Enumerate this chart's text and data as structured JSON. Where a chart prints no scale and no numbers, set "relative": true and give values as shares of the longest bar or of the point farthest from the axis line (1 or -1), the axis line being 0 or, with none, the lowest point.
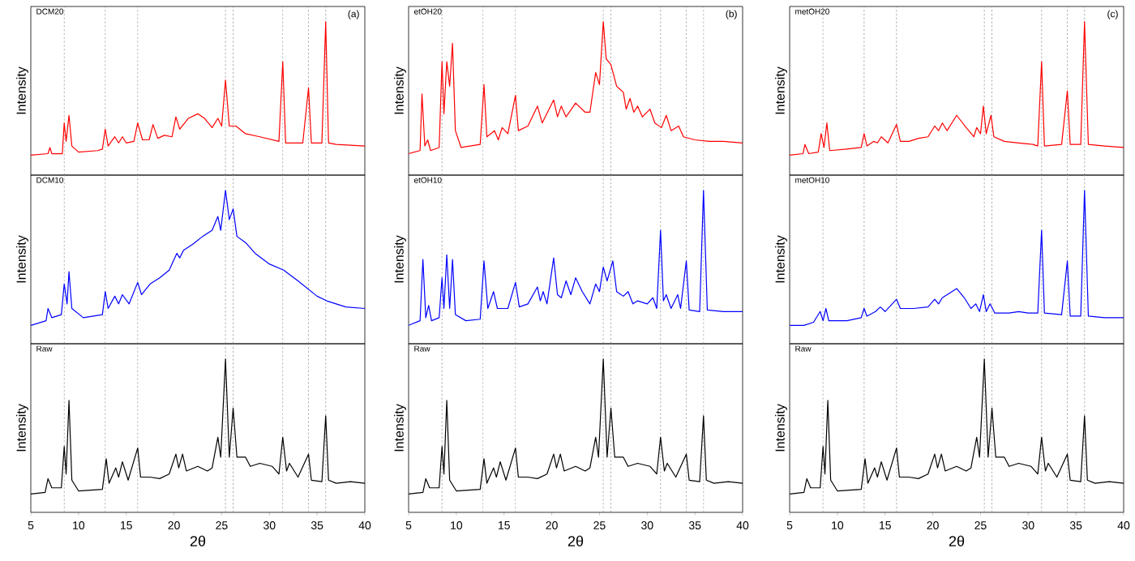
{
  "chart_data": [
    {
      "type": "line",
      "title": "DCM20",
      "ylabel": "Intensity",
      "annotations": [
        "(a)"
      ],
      "relative": true,
      "xlim": [
        5,
        40
      ],
      "tick_labels": false,
      "ref_lines": [
        {
          "axis": "x",
          "value": 8.5,
          "line_style": "dashed",
          "color": "#999999"
        },
        {
          "axis": "x",
          "value": 12.8,
          "line_style": "dashed",
          "color": "#999999"
        },
        {
          "axis": "x",
          "value": 16.2,
          "line_style": "dashed",
          "color": "#999999"
        },
        {
          "axis": "x",
          "value": 25.4,
          "line_style": "dashed",
          "color": "#999999"
        },
        {
          "axis": "x",
          "value": 26.2,
          "line_style": "dashed",
          "color": "#999999"
        },
        {
          "axis": "x",
          "value": 31.4,
          "line_style": "dashed",
          "color": "#999999"
        },
        {
          "axis": "x",
          "value": 34.1,
          "line_style": "dashed",
          "color": "#999999"
        },
        {
          "axis": "x",
          "value": 35.9,
          "line_style": "dashed",
          "color": "#999999"
        }
      ],
      "series": [
        {
          "color": "#ff0000",
          "x": [
            5,
            6.8,
            7,
            7.2,
            8.3,
            8.5,
            8.7,
            9.0,
            9.3,
            10,
            12,
            12.5,
            12.8,
            13.1,
            13.8,
            14.2,
            14.6,
            15,
            15.8,
            16.2,
            16.7,
            17.4,
            17.8,
            18.3,
            19,
            19.8,
            20.2,
            20.6,
            21.5,
            22.5,
            23.2,
            24,
            24.6,
            25,
            25.4,
            25.8,
            26.5,
            27.5,
            29,
            31,
            31.4,
            31.7,
            33.5,
            34.1,
            34.4,
            35.5,
            35.9,
            36.2,
            37,
            40
          ],
          "values": [
            0.13,
            0.14,
            0.18,
            0.14,
            0.14,
            0.34,
            0.22,
            0.39,
            0.19,
            0.15,
            0.16,
            0.17,
            0.3,
            0.19,
            0.25,
            0.21,
            0.25,
            0.21,
            0.22,
            0.34,
            0.23,
            0.23,
            0.33,
            0.24,
            0.26,
            0.25,
            0.38,
            0.3,
            0.37,
            0.4,
            0.37,
            0.31,
            0.37,
            0.32,
            0.62,
            0.32,
            0.32,
            0.27,
            0.25,
            0.22,
            0.74,
            0.21,
            0.21,
            0.57,
            0.21,
            0.21,
            1,
            0.21,
            0.2,
            0.19
          ]
        }
      ]
    },
    {
      "type": "line",
      "title": "etOH20",
      "ylabel": "Intensity",
      "annotations": [
        "(b)"
      ],
      "relative": true,
      "xlim": [
        5,
        40
      ],
      "tick_labels": false,
      "ref_lines": [
        {
          "axis": "x",
          "value": 8.5,
          "line_style": "dashed",
          "color": "#999999"
        },
        {
          "axis": "x",
          "value": 12.8,
          "line_style": "dashed",
          "color": "#999999"
        },
        {
          "axis": "x",
          "value": 16.2,
          "line_style": "dashed",
          "color": "#999999"
        },
        {
          "axis": "x",
          "value": 25.4,
          "line_style": "dashed",
          "color": "#999999"
        },
        {
          "axis": "x",
          "value": 26.2,
          "line_style": "dashed",
          "color": "#999999"
        },
        {
          "axis": "x",
          "value": 31.4,
          "line_style": "dashed",
          "color": "#999999"
        },
        {
          "axis": "x",
          "value": 34.1,
          "line_style": "dashed",
          "color": "#999999"
        },
        {
          "axis": "x",
          "value": 35.9,
          "line_style": "dashed",
          "color": "#999999"
        }
      ],
      "series": [
        {
          "color": "#ff0000",
          "x": [
            5,
            6.2,
            6.4,
            6.7,
            7,
            7.3,
            8.2,
            8.5,
            8.7,
            9.0,
            9.3,
            9.6,
            9.9,
            10.5,
            12.5,
            12.9,
            13.2,
            14,
            14.4,
            14.8,
            15.4,
            16.2,
            16.5,
            17.5,
            18.5,
            19,
            20.2,
            20.6,
            21,
            21.5,
            22.5,
            23.5,
            24,
            24.6,
            25,
            25.4,
            25.7,
            26.2,
            26.8,
            27.5,
            27.8,
            28.2,
            28.6,
            29,
            29.5,
            30.3,
            30.8,
            31.5,
            32,
            32.5,
            33.3,
            33.8,
            35,
            36.5,
            38,
            40
          ],
          "values": [
            0.14,
            0.16,
            0.53,
            0.19,
            0.23,
            0.16,
            0.18,
            0.74,
            0.4,
            0.74,
            0.58,
            0.86,
            0.29,
            0.18,
            0.2,
            0.59,
            0.25,
            0.29,
            0.23,
            0.31,
            0.27,
            0.52,
            0.29,
            0.32,
            0.45,
            0.34,
            0.49,
            0.38,
            0.45,
            0.38,
            0.47,
            0.41,
            0.41,
            0.67,
            0.59,
            1,
            0.76,
            0.72,
            0.58,
            0.54,
            0.43,
            0.5,
            0.41,
            0.45,
            0.38,
            0.43,
            0.34,
            0.31,
            0.39,
            0.29,
            0.32,
            0.25,
            0.23,
            0.22,
            0.22,
            0.21
          ]
        }
      ]
    },
    {
      "type": "line",
      "title": "metOH20",
      "ylabel": "Intensity",
      "annotations": [
        "(c)"
      ],
      "relative": true,
      "xlim": [
        5,
        40
      ],
      "tick_labels": false,
      "ref_lines": [
        {
          "axis": "x",
          "value": 8.5,
          "line_style": "dashed",
          "color": "#999999"
        },
        {
          "axis": "x",
          "value": 12.8,
          "line_style": "dashed",
          "color": "#999999"
        },
        {
          "axis": "x",
          "value": 16.2,
          "line_style": "dashed",
          "color": "#999999"
        },
        {
          "axis": "x",
          "value": 25.4,
          "line_style": "dashed",
          "color": "#999999"
        },
        {
          "axis": "x",
          "value": 26.2,
          "line_style": "dashed",
          "color": "#999999"
        },
        {
          "axis": "x",
          "value": 31.4,
          "line_style": "dashed",
          "color": "#999999"
        },
        {
          "axis": "x",
          "value": 34.1,
          "line_style": "dashed",
          "color": "#999999"
        },
        {
          "axis": "x",
          "value": 35.9,
          "line_style": "dashed",
          "color": "#999999"
        }
      ],
      "series": [
        {
          "color": "#ff0000",
          "x": [
            5,
            6.4,
            6.6,
            7,
            8,
            8.3,
            8.6,
            8.9,
            9.2,
            11,
            12.5,
            12.8,
            13.1,
            13.8,
            14.2,
            14.6,
            15.3,
            16.2,
            16.6,
            17.5,
            18.5,
            19.5,
            20.2,
            20.6,
            21,
            21.5,
            22.5,
            23.5,
            24.3,
            24.6,
            25,
            25.3,
            25.6,
            26.1,
            26.4,
            27.5,
            29,
            30.5,
            31,
            31.4,
            31.7,
            33.5,
            34.1,
            34.4,
            35.5,
            35.9,
            36.3,
            38,
            40
          ],
          "values": [
            0.13,
            0.14,
            0.2,
            0.14,
            0.15,
            0.27,
            0.18,
            0.34,
            0.16,
            0.17,
            0.18,
            0.27,
            0.19,
            0.22,
            0.21,
            0.25,
            0.21,
            0.33,
            0.22,
            0.22,
            0.24,
            0.25,
            0.32,
            0.29,
            0.34,
            0.29,
            0.39,
            0.31,
            0.25,
            0.31,
            0.27,
            0.45,
            0.27,
            0.39,
            0.25,
            0.22,
            0.21,
            0.2,
            0.19,
            0.74,
            0.19,
            0.2,
            0.55,
            0.2,
            0.2,
            1,
            0.2,
            0.19,
            0.18
          ]
        }
      ]
    },
    {
      "type": "line",
      "title": "DCM10",
      "ylabel": "Intensity",
      "relative": true,
      "xlim": [
        5,
        40
      ],
      "tick_labels": false,
      "ref_lines": [
        {
          "axis": "x",
          "value": 8.5,
          "line_style": "dashed",
          "color": "#999999"
        },
        {
          "axis": "x",
          "value": 12.8,
          "line_style": "dashed",
          "color": "#999999"
        },
        {
          "axis": "x",
          "value": 16.2,
          "line_style": "dashed",
          "color": "#999999"
        },
        {
          "axis": "x",
          "value": 25.4,
          "line_style": "dashed",
          "color": "#999999"
        },
        {
          "axis": "x",
          "value": 26.2,
          "line_style": "dashed",
          "color": "#999999"
        },
        {
          "axis": "x",
          "value": 31.4,
          "line_style": "dashed",
          "color": "#999999"
        },
        {
          "axis": "x",
          "value": 34.1,
          "line_style": "dashed",
          "color": "#999999"
        },
        {
          "axis": "x",
          "value": 35.9,
          "line_style": "dashed",
          "color": "#999999"
        }
      ],
      "series": [
        {
          "color": "#0000ff",
          "x": [
            5,
            6.6,
            6.8,
            7.2,
            8.2,
            8.5,
            8.8,
            9.0,
            9.3,
            10.5,
            12.5,
            12.8,
            13.1,
            13.8,
            14.2,
            14.6,
            15.3,
            16.2,
            16.6,
            17.5,
            18.5,
            19.5,
            20.3,
            20.6,
            21,
            22,
            23,
            24,
            24.6,
            24.9,
            25.4,
            25.8,
            26.2,
            26.6,
            27.5,
            28.5,
            30,
            31.5,
            33,
            35,
            36,
            38,
            40
          ],
          "values": [
            0.12,
            0.15,
            0.23,
            0.17,
            0.19,
            0.39,
            0.26,
            0.47,
            0.23,
            0.17,
            0.19,
            0.34,
            0.23,
            0.31,
            0.26,
            0.32,
            0.26,
            0.4,
            0.32,
            0.39,
            0.43,
            0.48,
            0.59,
            0.56,
            0.61,
            0.65,
            0.7,
            0.74,
            0.83,
            0.74,
            1,
            0.81,
            0.88,
            0.7,
            0.66,
            0.59,
            0.52,
            0.48,
            0.41,
            0.31,
            0.28,
            0.24,
            0.23
          ]
        }
      ]
    },
    {
      "type": "line",
      "title": "etOH10",
      "ylabel": "Intensity",
      "relative": true,
      "xlim": [
        5,
        40
      ],
      "tick_labels": false,
      "ref_lines": [
        {
          "axis": "x",
          "value": 8.5,
          "line_style": "dashed",
          "color": "#999999"
        },
        {
          "axis": "x",
          "value": 12.8,
          "line_style": "dashed",
          "color": "#999999"
        },
        {
          "axis": "x",
          "value": 16.2,
          "line_style": "dashed",
          "color": "#999999"
        },
        {
          "axis": "x",
          "value": 25.4,
          "line_style": "dashed",
          "color": "#999999"
        },
        {
          "axis": "x",
          "value": 26.2,
          "line_style": "dashed",
          "color": "#999999"
        },
        {
          "axis": "x",
          "value": 31.4,
          "line_style": "dashed",
          "color": "#999999"
        },
        {
          "axis": "x",
          "value": 34.1,
          "line_style": "dashed",
          "color": "#999999"
        },
        {
          "axis": "x",
          "value": 35.9,
          "line_style": "dashed",
          "color": "#999999"
        }
      ],
      "series": [
        {
          "color": "#0000ff",
          "x": [
            5,
            6.2,
            6.5,
            6.8,
            7.1,
            7.4,
            8.2,
            8.5,
            8.7,
            9.0,
            9.3,
            9.6,
            9.9,
            11,
            12.5,
            12.9,
            13.3,
            13.9,
            14.3,
            15.4,
            16.2,
            16.6,
            17.5,
            18.5,
            18.8,
            19.1,
            19.5,
            20.2,
            20.6,
            21,
            21.5,
            22,
            22.5,
            23.2,
            24,
            24.6,
            25,
            25.4,
            25.8,
            26.4,
            26.8,
            27.5,
            28,
            28.5,
            29,
            30,
            30.6,
            31,
            31.4,
            31.7,
            32,
            32.5,
            33.2,
            33.5,
            34.1,
            34.4,
            35.5,
            35.9,
            36.3,
            38,
            40
          ],
          "values": [
            0.12,
            0.15,
            0.55,
            0.17,
            0.25,
            0.15,
            0.17,
            0.43,
            0.23,
            0.58,
            0.23,
            0.55,
            0.19,
            0.15,
            0.16,
            0.54,
            0.23,
            0.34,
            0.23,
            0.23,
            0.4,
            0.24,
            0.26,
            0.37,
            0.28,
            0.34,
            0.26,
            0.56,
            0.32,
            0.3,
            0.41,
            0.32,
            0.43,
            0.34,
            0.26,
            0.39,
            0.34,
            0.5,
            0.41,
            0.54,
            0.34,
            0.31,
            0.34,
            0.26,
            0.28,
            0.26,
            0.3,
            0.23,
            0.74,
            0.28,
            0.32,
            0.23,
            0.32,
            0.23,
            0.54,
            0.22,
            0.21,
            1,
            0.22,
            0.21,
            0.21
          ]
        }
      ]
    },
    {
      "type": "line",
      "title": "metOH10",
      "ylabel": "Intensity",
      "relative": true,
      "xlim": [
        5,
        40
      ],
      "tick_labels": false,
      "ref_lines": [
        {
          "axis": "x",
          "value": 8.5,
          "line_style": "dashed",
          "color": "#999999"
        },
        {
          "axis": "x",
          "value": 12.8,
          "line_style": "dashed",
          "color": "#999999"
        },
        {
          "axis": "x",
          "value": 16.2,
          "line_style": "dashed",
          "color": "#999999"
        },
        {
          "axis": "x",
          "value": 25.4,
          "line_style": "dashed",
          "color": "#999999"
        },
        {
          "axis": "x",
          "value": 26.2,
          "line_style": "dashed",
          "color": "#999999"
        },
        {
          "axis": "x",
          "value": 31.4,
          "line_style": "dashed",
          "color": "#999999"
        },
        {
          "axis": "x",
          "value": 34.1,
          "line_style": "dashed",
          "color": "#999999"
        },
        {
          "axis": "x",
          "value": 35.9,
          "line_style": "dashed",
          "color": "#999999"
        }
      ],
      "series": [
        {
          "color": "#0000ff",
          "x": [
            5,
            6.5,
            7.5,
            8.2,
            8.5,
            8.8,
            9.1,
            11,
            12.5,
            12.8,
            13.1,
            14,
            14.5,
            15,
            16.2,
            16.6,
            18,
            19.5,
            20.2,
            20.6,
            21,
            22,
            22.5,
            23.3,
            24,
            24.5,
            24.9,
            25.3,
            25.6,
            26,
            26.5,
            28,
            29,
            30,
            31,
            31.4,
            31.7,
            33.5,
            34.1,
            34.4,
            35.5,
            35.9,
            36.3,
            38,
            40
          ],
          "values": [
            0.12,
            0.12,
            0.14,
            0.21,
            0.15,
            0.23,
            0.15,
            0.15,
            0.17,
            0.23,
            0.18,
            0.21,
            0.24,
            0.21,
            0.29,
            0.23,
            0.23,
            0.24,
            0.29,
            0.26,
            0.3,
            0.34,
            0.36,
            0.3,
            0.23,
            0.26,
            0.21,
            0.32,
            0.21,
            0.26,
            0.2,
            0.2,
            0.21,
            0.2,
            0.2,
            0.74,
            0.2,
            0.19,
            0.54,
            0.18,
            0.18,
            1,
            0.18,
            0.17,
            0.17
          ]
        }
      ]
    },
    {
      "type": "line",
      "title": "Raw",
      "xlabel": "2θ",
      "ylabel": "Intensity",
      "relative": true,
      "xlim": [
        5,
        40
      ],
      "xticks": [
        5,
        10,
        15,
        20,
        25,
        30,
        35,
        40
      ],
      "tick_labels": "x",
      "ref_lines": [
        {
          "axis": "x",
          "value": 8.5,
          "line_style": "dashed",
          "color": "#999999"
        },
        {
          "axis": "x",
          "value": 12.8,
          "line_style": "dashed",
          "color": "#999999"
        },
        {
          "axis": "x",
          "value": 16.2,
          "line_style": "dashed",
          "color": "#999999"
        },
        {
          "axis": "x",
          "value": 25.4,
          "line_style": "dashed",
          "color": "#999999"
        },
        {
          "axis": "x",
          "value": 26.2,
          "line_style": "dashed",
          "color": "#999999"
        },
        {
          "axis": "x",
          "value": 31.4,
          "line_style": "dashed",
          "color": "#999999"
        },
        {
          "axis": "x",
          "value": 34.1,
          "line_style": "dashed",
          "color": "#999999"
        },
        {
          "axis": "x",
          "value": 35.9,
          "line_style": "dashed",
          "color": "#999999"
        }
      ],
      "series": [
        {
          "color": "#000000",
          "x": [
            5,
            6.5,
            6.8,
            7.2,
            8.2,
            8.5,
            8.7,
            9.0,
            9.3,
            10,
            12.5,
            12.9,
            13.2,
            13.9,
            14.2,
            14.6,
            15.2,
            16.2,
            16.5,
            17.5,
            18.5,
            19.5,
            20.2,
            20.5,
            20.9,
            21.3,
            22.5,
            23.5,
            24,
            24.6,
            24.9,
            25.4,
            25.8,
            26.2,
            26.6,
            27.5,
            28,
            29,
            30.3,
            31,
            31.4,
            31.8,
            32.1,
            33,
            34.1,
            34.4,
            35.5,
            35.9,
            36.2,
            37,
            38.5,
            40
          ],
          "values": [
            0.12,
            0.13,
            0.22,
            0.16,
            0.16,
            0.43,
            0.25,
            0.73,
            0.21,
            0.14,
            0.15,
            0.35,
            0.19,
            0.29,
            0.23,
            0.33,
            0.21,
            0.42,
            0.23,
            0.23,
            0.22,
            0.25,
            0.38,
            0.29,
            0.38,
            0.27,
            0.3,
            0.27,
            0.29,
            0.49,
            0.36,
            1,
            0.36,
            0.68,
            0.36,
            0.36,
            0.3,
            0.32,
            0.3,
            0.25,
            0.49,
            0.27,
            0.32,
            0.23,
            0.38,
            0.21,
            0.2,
            0.63,
            0.21,
            0.19,
            0.2,
            0.19
          ]
        }
      ]
    },
    {
      "type": "line",
      "title": "Raw",
      "xlabel": "2θ",
      "ylabel": "Intensity",
      "relative": true,
      "xlim": [
        5,
        40
      ],
      "xticks": [
        5,
        10,
        15,
        20,
        25,
        30,
        35,
        40
      ],
      "tick_labels": "x",
      "ref_lines": [
        {
          "axis": "x",
          "value": 8.5,
          "line_style": "dashed",
          "color": "#999999"
        },
        {
          "axis": "x",
          "value": 12.8,
          "line_style": "dashed",
          "color": "#999999"
        },
        {
          "axis": "x",
          "value": 16.2,
          "line_style": "dashed",
          "color": "#999999"
        },
        {
          "axis": "x",
          "value": 25.4,
          "line_style": "dashed",
          "color": "#999999"
        },
        {
          "axis": "x",
          "value": 26.2,
          "line_style": "dashed",
          "color": "#999999"
        },
        {
          "axis": "x",
          "value": 31.4,
          "line_style": "dashed",
          "color": "#999999"
        },
        {
          "axis": "x",
          "value": 34.1,
          "line_style": "dashed",
          "color": "#999999"
        },
        {
          "axis": "x",
          "value": 35.9,
          "line_style": "dashed",
          "color": "#999999"
        }
      ],
      "series": [
        {
          "color": "#000000",
          "x": [
            5,
            6.5,
            6.8,
            7.2,
            8.2,
            8.5,
            8.7,
            9.0,
            9.3,
            10,
            12.5,
            12.9,
            13.2,
            13.9,
            14.2,
            14.6,
            15.2,
            16.2,
            16.5,
            17.5,
            18.5,
            19.5,
            20.2,
            20.5,
            20.9,
            21.3,
            22.5,
            23.5,
            24,
            24.6,
            24.9,
            25.4,
            25.8,
            26.2,
            26.6,
            27.5,
            28,
            29,
            30.3,
            31,
            31.4,
            31.8,
            32.1,
            33,
            34.1,
            34.4,
            35.5,
            35.9,
            36.2,
            37,
            38.5,
            40
          ],
          "values": [
            0.12,
            0.13,
            0.22,
            0.16,
            0.16,
            0.43,
            0.25,
            0.73,
            0.21,
            0.14,
            0.15,
            0.35,
            0.19,
            0.29,
            0.23,
            0.33,
            0.21,
            0.42,
            0.23,
            0.23,
            0.22,
            0.25,
            0.38,
            0.29,
            0.38,
            0.27,
            0.3,
            0.27,
            0.29,
            0.49,
            0.36,
            1,
            0.36,
            0.68,
            0.36,
            0.36,
            0.3,
            0.32,
            0.3,
            0.25,
            0.49,
            0.27,
            0.32,
            0.23,
            0.38,
            0.21,
            0.2,
            0.63,
            0.21,
            0.19,
            0.2,
            0.19
          ]
        }
      ]
    },
    {
      "type": "line",
      "title": "Raw",
      "xlabel": "2θ",
      "ylabel": "Intensity",
      "relative": true,
      "xlim": [
        5,
        40
      ],
      "xticks": [
        5,
        10,
        15,
        20,
        25,
        30,
        35,
        40
      ],
      "tick_labels": "x",
      "ref_lines": [
        {
          "axis": "x",
          "value": 8.5,
          "line_style": "dashed",
          "color": "#999999"
        },
        {
          "axis": "x",
          "value": 12.8,
          "line_style": "dashed",
          "color": "#999999"
        },
        {
          "axis": "x",
          "value": 16.2,
          "line_style": "dashed",
          "color": "#999999"
        },
        {
          "axis": "x",
          "value": 25.4,
          "line_style": "dashed",
          "color": "#999999"
        },
        {
          "axis": "x",
          "value": 26.2,
          "line_style": "dashed",
          "color": "#999999"
        },
        {
          "axis": "x",
          "value": 31.4,
          "line_style": "dashed",
          "color": "#999999"
        },
        {
          "axis": "x",
          "value": 34.1,
          "line_style": "dashed",
          "color": "#999999"
        },
        {
          "axis": "x",
          "value": 35.9,
          "line_style": "dashed",
          "color": "#999999"
        }
      ],
      "series": [
        {
          "color": "#000000",
          "x": [
            5,
            6.5,
            6.8,
            7.2,
            8.2,
            8.5,
            8.7,
            9.0,
            9.3,
            10,
            12.5,
            12.9,
            13.2,
            13.9,
            14.2,
            14.6,
            15.2,
            16.2,
            16.5,
            17.5,
            18.5,
            19.5,
            20.2,
            20.5,
            20.9,
            21.3,
            22.5,
            23.5,
            24,
            24.6,
            24.9,
            25.4,
            25.8,
            26.2,
            26.6,
            27.5,
            28,
            29,
            30.3,
            31,
            31.4,
            31.8,
            32.1,
            33,
            34.1,
            34.4,
            35.5,
            35.9,
            36.2,
            37,
            38.5,
            40
          ],
          "values": [
            0.12,
            0.13,
            0.22,
            0.16,
            0.16,
            0.43,
            0.25,
            0.73,
            0.21,
            0.14,
            0.15,
            0.35,
            0.19,
            0.29,
            0.23,
            0.33,
            0.21,
            0.42,
            0.23,
            0.23,
            0.22,
            0.25,
            0.38,
            0.29,
            0.38,
            0.27,
            0.3,
            0.27,
            0.29,
            0.49,
            0.36,
            1,
            0.36,
            0.68,
            0.36,
            0.36,
            0.3,
            0.32,
            0.3,
            0.25,
            0.49,
            0.27,
            0.32,
            0.23,
            0.38,
            0.21,
            0.2,
            0.63,
            0.21,
            0.19,
            0.2,
            0.19
          ]
        }
      ]
    }
  ]
}
